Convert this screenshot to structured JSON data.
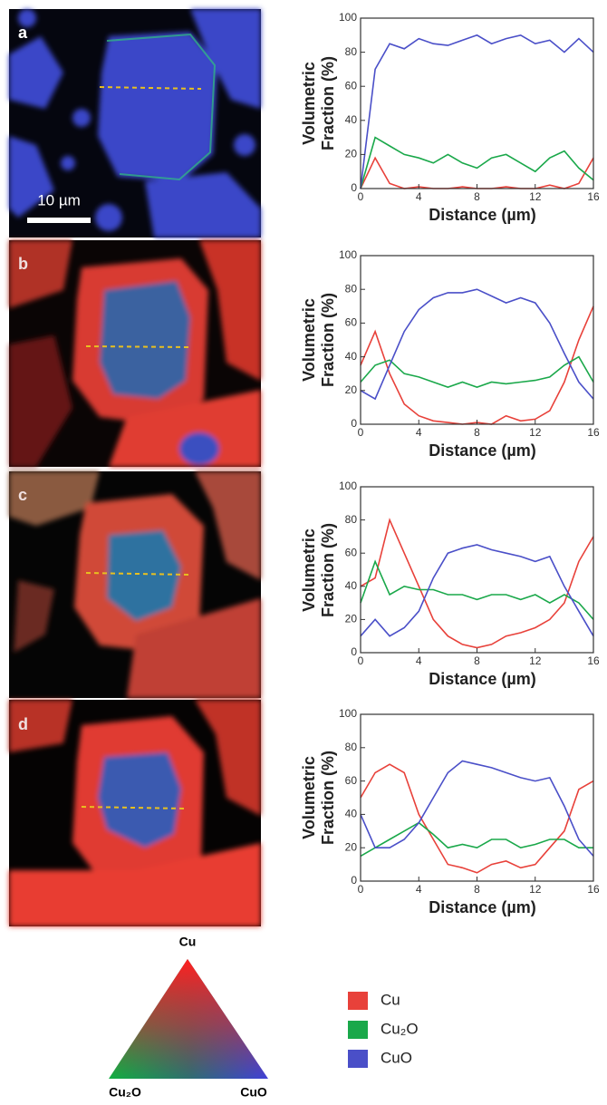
{
  "panel_labels": [
    "a",
    "b",
    "c",
    "d"
  ],
  "scale_bar": "10 µm",
  "ternary_legend": {
    "top": "Cu",
    "left": "Cu₂O",
    "right": "CuO"
  },
  "chart_data": [
    {
      "type": "line",
      "xlabel": "Distance (µm)",
      "ylabel": "Volumetric Fraction (%)",
      "x": [
        0,
        1,
        2,
        3,
        4,
        5,
        6,
        7,
        8,
        9,
        10,
        11,
        12,
        13,
        14,
        15,
        16
      ],
      "xlim": [
        0,
        16
      ],
      "ylim": [
        0,
        100
      ],
      "xticks": [
        0,
        4,
        8,
        12,
        16
      ],
      "yticks": [
        0,
        20,
        40,
        60,
        80,
        100
      ],
      "series": [
        {
          "name": "Cu",
          "color": "#e8413a",
          "values": [
            0,
            18,
            3,
            0,
            1,
            0,
            0,
            1,
            0,
            0,
            1,
            0,
            0,
            2,
            0,
            3,
            18
          ]
        },
        {
          "name": "Cu₂O",
          "color": "#1aa84a",
          "values": [
            0,
            30,
            25,
            20,
            18,
            15,
            20,
            15,
            12,
            18,
            20,
            15,
            10,
            18,
            22,
            12,
            5
          ]
        },
        {
          "name": "CuO",
          "color": "#4a4fc8",
          "values": [
            0,
            70,
            85,
            82,
            88,
            85,
            84,
            87,
            90,
            85,
            88,
            90,
            85,
            87,
            80,
            88,
            80
          ]
        }
      ]
    },
    {
      "type": "line",
      "xlabel": "Distance (µm)",
      "ylabel": "Volumetric Fraction (%)",
      "x": [
        0,
        1,
        2,
        3,
        4,
        5,
        6,
        7,
        8,
        9,
        10,
        11,
        12,
        13,
        14,
        15,
        16
      ],
      "xlim": [
        0,
        16
      ],
      "ylim": [
        0,
        100
      ],
      "xticks": [
        0,
        4,
        8,
        12,
        16
      ],
      "yticks": [
        0,
        20,
        40,
        60,
        80,
        100
      ],
      "series": [
        {
          "name": "Cu",
          "color": "#e8413a",
          "values": [
            35,
            55,
            30,
            12,
            5,
            2,
            1,
            0,
            1,
            0,
            5,
            2,
            3,
            8,
            25,
            50,
            70
          ]
        },
        {
          "name": "Cu₂O",
          "color": "#1aa84a",
          "values": [
            25,
            35,
            38,
            30,
            28,
            25,
            22,
            25,
            22,
            25,
            24,
            25,
            26,
            28,
            35,
            40,
            25
          ]
        },
        {
          "name": "CuO",
          "color": "#4a4fc8",
          "values": [
            20,
            15,
            35,
            55,
            68,
            75,
            78,
            78,
            80,
            76,
            72,
            75,
            72,
            60,
            42,
            25,
            15
          ]
        }
      ]
    },
    {
      "type": "line",
      "xlabel": "Distance (µm)",
      "ylabel": "Volumetric Fraction (%)",
      "x": [
        0,
        1,
        2,
        3,
        4,
        5,
        6,
        7,
        8,
        9,
        10,
        11,
        12,
        13,
        14,
        15,
        16
      ],
      "xlim": [
        0,
        16
      ],
      "ylim": [
        0,
        100
      ],
      "xticks": [
        0,
        4,
        8,
        12,
        16
      ],
      "yticks": [
        0,
        20,
        40,
        60,
        80,
        100
      ],
      "series": [
        {
          "name": "Cu",
          "color": "#e8413a",
          "values": [
            40,
            45,
            80,
            60,
            40,
            20,
            10,
            5,
            3,
            5,
            10,
            12,
            15,
            20,
            30,
            55,
            70
          ]
        },
        {
          "name": "Cu₂O",
          "color": "#1aa84a",
          "values": [
            30,
            55,
            35,
            40,
            38,
            38,
            35,
            35,
            32,
            35,
            35,
            32,
            35,
            30,
            35,
            30,
            20
          ]
        },
        {
          "name": "CuO",
          "color": "#4a4fc8",
          "values": [
            10,
            20,
            10,
            15,
            25,
            45,
            60,
            63,
            65,
            62,
            60,
            58,
            55,
            58,
            40,
            25,
            10
          ]
        }
      ]
    },
    {
      "type": "line",
      "xlabel": "Distance (µm)",
      "ylabel": "Volumetric Fraction (%)",
      "x": [
        0,
        1,
        2,
        3,
        4,
        5,
        6,
        7,
        8,
        9,
        10,
        11,
        12,
        13,
        14,
        15,
        16
      ],
      "xlim": [
        0,
        16
      ],
      "ylim": [
        0,
        100
      ],
      "xticks": [
        0,
        4,
        8,
        12,
        16
      ],
      "yticks": [
        0,
        20,
        40,
        60,
        80,
        100
      ],
      "series": [
        {
          "name": "Cu",
          "color": "#e8413a",
          "values": [
            50,
            65,
            70,
            65,
            40,
            25,
            10,
            8,
            5,
            10,
            12,
            8,
            10,
            20,
            30,
            55,
            60
          ]
        },
        {
          "name": "Cu₂O",
          "color": "#1aa84a",
          "values": [
            15,
            20,
            25,
            30,
            35,
            28,
            20,
            22,
            20,
            25,
            25,
            20,
            22,
            25,
            25,
            20,
            20
          ]
        },
        {
          "name": "CuO",
          "color": "#4a4fc8",
          "values": [
            40,
            20,
            20,
            25,
            35,
            50,
            65,
            72,
            70,
            68,
            65,
            62,
            60,
            62,
            45,
            25,
            15
          ]
        }
      ]
    }
  ]
}
